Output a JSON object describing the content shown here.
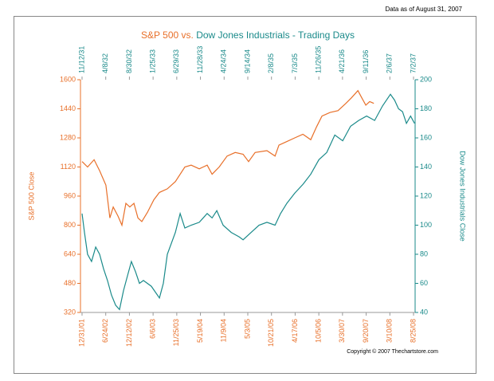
{
  "chart_data": {
    "type": "line",
    "title": [
      "S&P 500 vs.",
      "Dow Jones Industrials - Trading Days"
    ],
    "note": "Data as of August 31, 2007",
    "copyright": "Copyright © 2007 Thechartstore.com",
    "ylabel": "S&P 500 Close",
    "y2label": "Dow Jones Industrials Close",
    "xlim": [
      -8,
      1688
    ],
    "ylim": [
      320,
      1600
    ],
    "yticks": [
      320,
      480,
      640,
      800,
      960,
      1120,
      1280,
      1440,
      1600
    ],
    "y2lim": [
      40,
      200
    ],
    "y2ticks": [
      40,
      60,
      80,
      100,
      120,
      140,
      160,
      180,
      200
    ],
    "xticks": [
      {
        "value": 0,
        "label": "12/31/01"
      },
      {
        "value": 120,
        "label": "6/24/02"
      },
      {
        "value": 240,
        "label": "12/12/02"
      },
      {
        "value": 360,
        "label": "6/6/03"
      },
      {
        "value": 480,
        "label": "11/25/03"
      },
      {
        "value": 600,
        "label": "5/19/04"
      },
      {
        "value": 720,
        "label": "11/9/04"
      },
      {
        "value": 840,
        "label": "5/3/05"
      },
      {
        "value": 960,
        "label": "10/21/05"
      },
      {
        "value": 1080,
        "label": "4/17/06"
      },
      {
        "value": 1200,
        "label": "10/5/06"
      },
      {
        "value": 1320,
        "label": "3/30/07"
      },
      {
        "value": 1440,
        "label": "9/20/07"
      },
      {
        "value": 1560,
        "label": "3/10/08"
      },
      {
        "value": 1680,
        "label": "8/25/08"
      }
    ],
    "x2ticks": [
      {
        "value": 0,
        "label": "11/12/31"
      },
      {
        "value": 120,
        "label": "4/8/32"
      },
      {
        "value": 240,
        "label": "8/30/32"
      },
      {
        "value": 360,
        "label": "1/25/33"
      },
      {
        "value": 480,
        "label": "6/29/33"
      },
      {
        "value": 600,
        "label": "11/28/33"
      },
      {
        "value": 720,
        "label": "4/24/34"
      },
      {
        "value": 840,
        "label": "9/14/34"
      },
      {
        "value": 960,
        "label": "2/8/35"
      },
      {
        "value": 1080,
        "label": "7/3/35"
      },
      {
        "value": 1200,
        "label": "11/26/35"
      },
      {
        "value": 1320,
        "label": "4/21/36"
      },
      {
        "value": 1440,
        "label": "9/11/36"
      },
      {
        "value": 1560,
        "label": "2/6/37"
      },
      {
        "value": 1680,
        "label": "7/2/37"
      }
    ],
    "series": [
      {
        "color": "#e8702a",
        "x": [
          0,
          28,
          61,
          89,
          121,
          141,
          158,
          182,
          202,
          222,
          242,
          263,
          283,
          303,
          331,
          364,
          392,
          432,
          473,
          521,
          553,
          594,
          634,
          659,
          695,
          735,
          776,
          816,
          844,
          877,
          937,
          978,
          998,
          1038,
          1078,
          1119,
          1159,
          1188,
          1216,
          1257,
          1297,
          1337,
          1365,
          1398,
          1418,
          1438,
          1458,
          1479
        ],
        "values": [
          1150,
          1120,
          1160,
          1100,
          1020,
          840,
          900,
          850,
          800,
          920,
          900,
          920,
          840,
          820,
          870,
          940,
          980,
          1000,
          1040,
          1120,
          1130,
          1110,
          1130,
          1080,
          1120,
          1180,
          1200,
          1190,
          1150,
          1200,
          1210,
          1180,
          1240,
          1260,
          1280,
          1300,
          1270,
          1340,
          1400,
          1420,
          1430,
          1470,
          1500,
          1540,
          1500,
          1460,
          1480,
          1470
        ]
      },
      {
        "color": "#1a8a8a",
        "axis": "y2",
        "x": [
          0,
          12,
          28,
          48,
          69,
          89,
          109,
          129,
          149,
          170,
          190,
          210,
          230,
          250,
          271,
          291,
          311,
          351,
          392,
          412,
          432,
          473,
          497,
          521,
          553,
          594,
          634,
          659,
          683,
          715,
          756,
          796,
          816,
          857,
          897,
          937,
          978,
          1006,
          1038,
          1078,
          1119,
          1159,
          1200,
          1240,
          1281,
          1321,
          1361,
          1402,
          1442,
          1483,
          1523,
          1563,
          1584,
          1604,
          1624,
          1644,
          1665,
          1685
        ],
        "values": [
          108,
          95,
          80,
          75,
          85,
          80,
          70,
          62,
          52,
          45,
          42,
          55,
          65,
          75,
          68,
          60,
          62,
          58,
          50,
          60,
          80,
          95,
          108,
          98,
          100,
          102,
          108,
          105,
          110,
          100,
          95,
          92,
          90,
          95,
          100,
          102,
          100,
          108,
          115,
          122,
          128,
          135,
          145,
          150,
          162,
          158,
          168,
          172,
          175,
          172,
          182,
          190,
          186,
          180,
          178,
          170,
          175,
          170
        ]
      }
    ]
  }
}
